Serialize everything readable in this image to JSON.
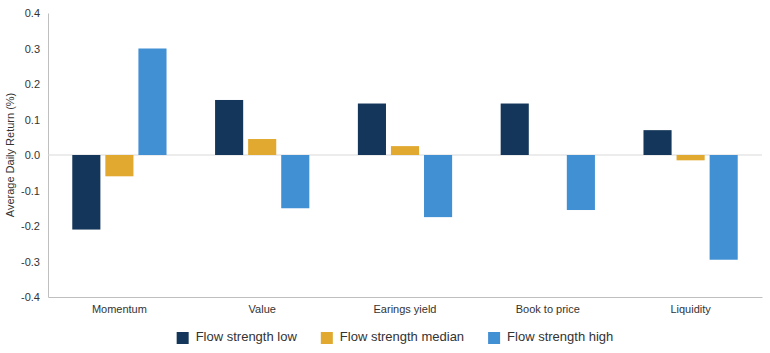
{
  "chart_data": {
    "type": "bar",
    "y_label": "Average Daily Return (%)",
    "categories": [
      "Momentum",
      "Value",
      "Earings yield",
      "Book to price",
      "Liquidity"
    ],
    "series": [
      {
        "name": "Flow strength low",
        "color": "#14365a",
        "values": [
          -0.21,
          0.155,
          0.145,
          0.145,
          0.07
        ]
      },
      {
        "name": "Flow strength median",
        "color": "#e1a92f",
        "values": [
          -0.06,
          0.045,
          0.025,
          0,
          -0.015
        ]
      },
      {
        "name": "Flow strength high",
        "color": "#4190d3",
        "values": [
          0.3,
          -0.15,
          -0.175,
          -0.155,
          -0.295
        ]
      }
    ],
    "ylim": [
      -0.4,
      0.4
    ],
    "yticks": [
      {
        "value": 0.4,
        "label": "0.4"
      },
      {
        "value": 0.3,
        "label": "0.3"
      },
      {
        "value": 0.2,
        "label": "0.2"
      },
      {
        "value": 0.1,
        "label": "0.1"
      },
      {
        "value": 0,
        "label": "0.0"
      },
      {
        "value": -0.1,
        "label": "-0.1"
      },
      {
        "value": -0.2,
        "label": "-0.2"
      },
      {
        "value": -0.3,
        "label": "-0.3"
      },
      {
        "value": -0.4,
        "label": "-0.4"
      }
    ],
    "grid": false,
    "legend": "bottom"
  }
}
